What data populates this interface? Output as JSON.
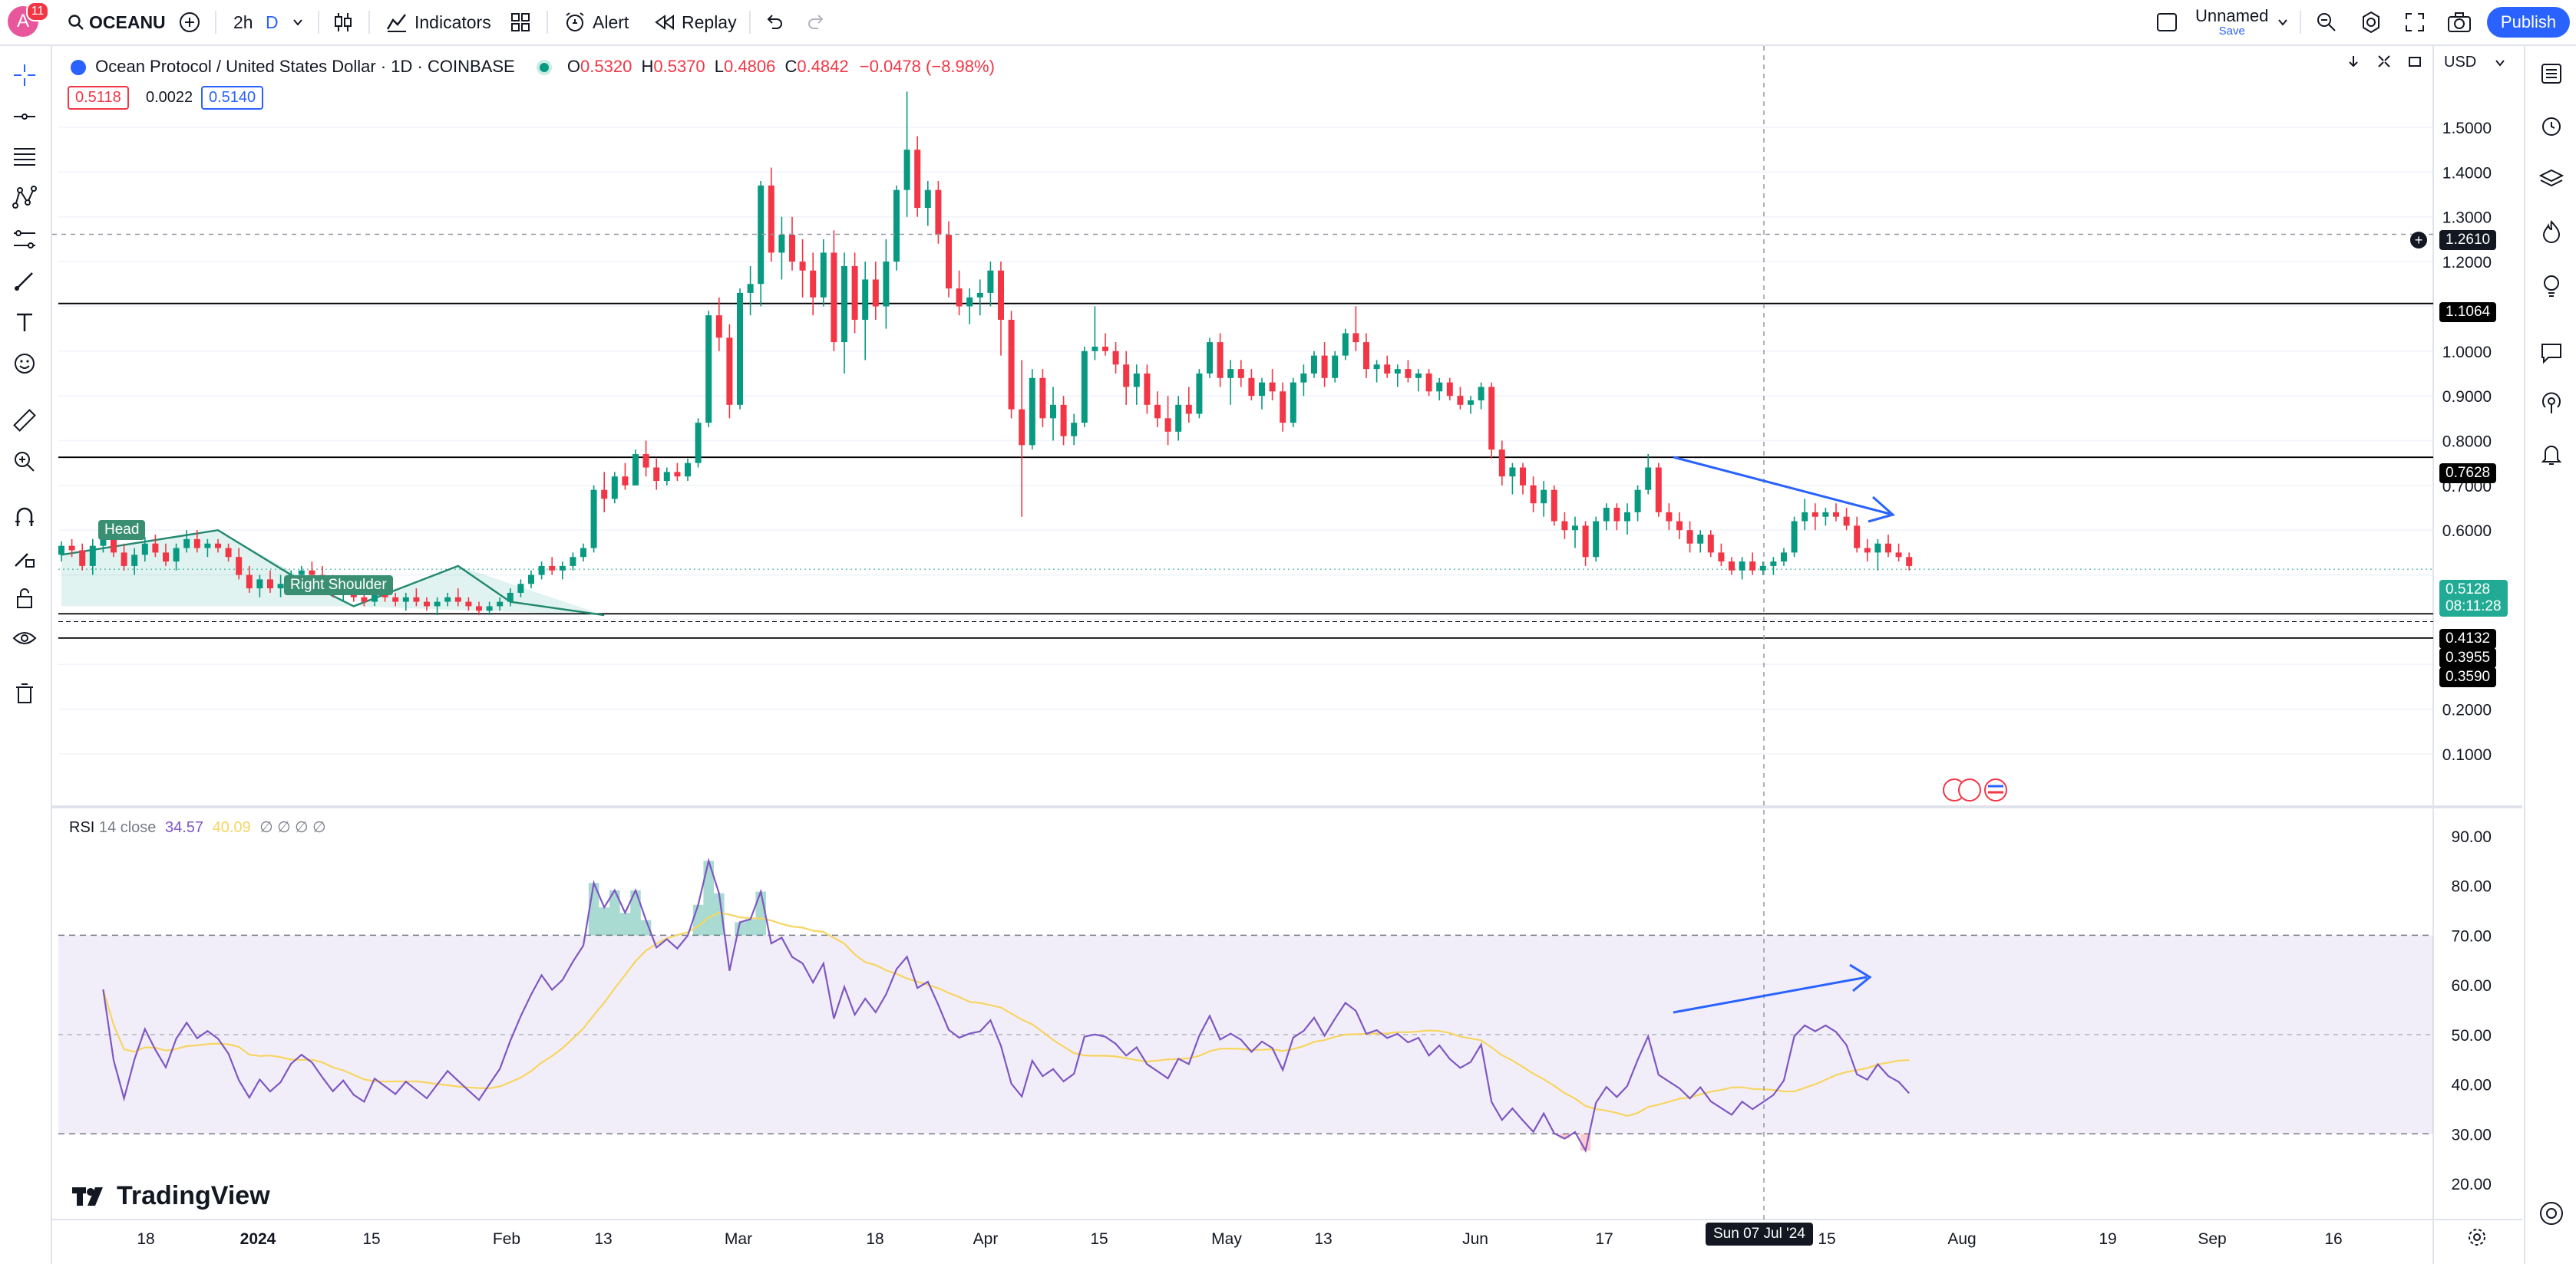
{
  "topbar": {
    "avatar_letter": "A",
    "notifications": "11",
    "symbol": "OCEANU",
    "interval": "2h",
    "interval_unit": "D",
    "indicators": "Indicators",
    "alert": "Alert",
    "replay": "Replay",
    "layout_name": "Unnamed",
    "layout_save": "Save",
    "publish": "Publish"
  },
  "legend": {
    "title": "Ocean Protocol / United States Dollar · 1D · COINBASE",
    "o_label": "O",
    "o": "0.5320",
    "h_label": "H",
    "h": "0.5370",
    "l_label": "L",
    "l": "0.4806",
    "c_label": "C",
    "c": "0.4842",
    "change": "−0.0478 (−8.98%)",
    "bid": "0.5118",
    "spread": "0.0022",
    "ask": "0.5140",
    "currency": "USD"
  },
  "price_axis": [
    "1.5000",
    "1.4000",
    "1.3000",
    "1.2000",
    "1.0000",
    "0.9000",
    "0.8000",
    "0.7000",
    "0.6000",
    "0.3000",
    "0.2000",
    "0.1000"
  ],
  "price_tags": {
    "crosshair": "1.2610",
    "level1": "1.1064",
    "level2": "0.7628",
    "last": "0.5128",
    "countdown": "08:11:28",
    "level3": "0.4132",
    "level4": "0.3955",
    "level5": "0.3590"
  },
  "pattern_labels": {
    "head": "Head",
    "right_shoulder": "Right Shoulder"
  },
  "rsi": {
    "legend_name": "RSI",
    "legend_params": "14 close",
    "rsi_value": "34.57",
    "ma_value": "40.09",
    "extra": "∅ ∅ ∅ ∅",
    "axis": [
      "90.00",
      "80.00",
      "70.00",
      "60.00",
      "50.00",
      "40.00",
      "30.00",
      "20.00"
    ]
  },
  "time_axis": [
    "18",
    "2024",
    "15",
    "Feb",
    "13",
    "Mar",
    "18",
    "Apr",
    "15",
    "May",
    "13",
    "Jun",
    "17",
    "15",
    "Aug",
    "19",
    "Sep",
    "16"
  ],
  "crosshair_date": "Sun 07 Jul '24",
  "brand": "TradingView",
  "colors": {
    "up": "#089981",
    "down": "#f23645",
    "rsi": "#7e57c2",
    "rsi_ma": "#f7d560",
    "arrow": "#2962ff",
    "accent": "#2962ff"
  },
  "chart_data": {
    "type": "candlestick",
    "title": "Ocean Protocol / United States Dollar · 1D · COINBASE",
    "ylim": [
      0.08,
      1.58
    ],
    "indicator": {
      "type": "line",
      "name": "RSI",
      "ylim": [
        18,
        92
      ],
      "bands": [
        30,
        70
      ]
    },
    "series": [
      {
        "name": "OCEANU",
        "ohlc": [
          [
            0.545,
            0.575,
            0.53,
            0.565
          ],
          [
            0.565,
            0.58,
            0.54,
            0.555
          ],
          [
            0.555,
            0.57,
            0.51,
            0.52
          ],
          [
            0.52,
            0.58,
            0.5,
            0.565
          ],
          [
            0.565,
            0.6,
            0.55,
            0.585
          ],
          [
            0.585,
            0.6,
            0.54,
            0.55
          ],
          [
            0.55,
            0.57,
            0.51,
            0.52
          ],
          [
            0.52,
            0.56,
            0.5,
            0.545
          ],
          [
            0.545,
            0.585,
            0.53,
            0.57
          ],
          [
            0.57,
            0.59,
            0.54,
            0.55
          ],
          [
            0.55,
            0.57,
            0.52,
            0.53
          ],
          [
            0.53,
            0.57,
            0.51,
            0.56
          ],
          [
            0.56,
            0.6,
            0.55,
            0.58
          ],
          [
            0.58,
            0.6,
            0.55,
            0.56
          ],
          [
            0.56,
            0.58,
            0.54,
            0.57
          ],
          [
            0.57,
            0.58,
            0.55,
            0.56
          ],
          [
            0.56,
            0.57,
            0.53,
            0.54
          ],
          [
            0.54,
            0.56,
            0.49,
            0.5
          ],
          [
            0.5,
            0.52,
            0.46,
            0.47
          ],
          [
            0.47,
            0.5,
            0.45,
            0.49
          ],
          [
            0.49,
            0.51,
            0.46,
            0.47
          ],
          [
            0.47,
            0.5,
            0.45,
            0.48
          ],
          [
            0.48,
            0.51,
            0.46,
            0.5
          ],
          [
            0.5,
            0.52,
            0.48,
            0.51
          ],
          [
            0.51,
            0.53,
            0.49,
            0.5
          ],
          [
            0.5,
            0.52,
            0.47,
            0.48
          ],
          [
            0.48,
            0.5,
            0.45,
            0.46
          ],
          [
            0.46,
            0.49,
            0.44,
            0.47
          ],
          [
            0.47,
            0.48,
            0.44,
            0.45
          ],
          [
            0.45,
            0.47,
            0.43,
            0.44
          ],
          [
            0.44,
            0.48,
            0.43,
            0.46
          ],
          [
            0.46,
            0.48,
            0.44,
            0.45
          ],
          [
            0.45,
            0.46,
            0.43,
            0.44
          ],
          [
            0.44,
            0.46,
            0.42,
            0.45
          ],
          [
            0.45,
            0.47,
            0.43,
            0.44
          ],
          [
            0.44,
            0.45,
            0.42,
            0.43
          ],
          [
            0.43,
            0.45,
            0.41,
            0.44
          ],
          [
            0.44,
            0.46,
            0.43,
            0.45
          ],
          [
            0.45,
            0.47,
            0.43,
            0.44
          ],
          [
            0.44,
            0.45,
            0.42,
            0.43
          ],
          [
            0.43,
            0.44,
            0.41,
            0.42
          ],
          [
            0.42,
            0.44,
            0.41,
            0.43
          ],
          [
            0.43,
            0.45,
            0.42,
            0.44
          ],
          [
            0.44,
            0.47,
            0.43,
            0.46
          ],
          [
            0.46,
            0.49,
            0.45,
            0.48
          ],
          [
            0.48,
            0.51,
            0.47,
            0.5
          ],
          [
            0.5,
            0.53,
            0.49,
            0.52
          ],
          [
            0.52,
            0.54,
            0.5,
            0.51
          ],
          [
            0.51,
            0.53,
            0.49,
            0.52
          ],
          [
            0.52,
            0.55,
            0.51,
            0.54
          ],
          [
            0.54,
            0.57,
            0.53,
            0.56
          ],
          [
            0.56,
            0.7,
            0.55,
            0.69
          ],
          [
            0.69,
            0.73,
            0.64,
            0.67
          ],
          [
            0.67,
            0.73,
            0.66,
            0.72
          ],
          [
            0.72,
            0.75,
            0.69,
            0.7
          ],
          [
            0.7,
            0.78,
            0.7,
            0.77
          ],
          [
            0.77,
            0.8,
            0.72,
            0.74
          ],
          [
            0.74,
            0.76,
            0.69,
            0.71
          ],
          [
            0.71,
            0.74,
            0.7,
            0.73
          ],
          [
            0.73,
            0.75,
            0.71,
            0.72
          ],
          [
            0.72,
            0.76,
            0.71,
            0.75
          ],
          [
            0.75,
            0.85,
            0.74,
            0.84
          ],
          [
            0.84,
            1.09,
            0.83,
            1.08
          ],
          [
            1.08,
            1.12,
            1.0,
            1.03
          ],
          [
            1.03,
            1.06,
            0.85,
            0.88
          ],
          [
            0.88,
            1.14,
            0.87,
            1.13
          ],
          [
            1.13,
            1.19,
            1.08,
            1.15
          ],
          [
            1.15,
            1.38,
            1.1,
            1.37
          ],
          [
            1.37,
            1.41,
            1.2,
            1.22
          ],
          [
            1.22,
            1.3,
            1.16,
            1.26
          ],
          [
            1.26,
            1.3,
            1.18,
            1.2
          ],
          [
            1.2,
            1.25,
            1.12,
            1.18
          ],
          [
            1.18,
            1.22,
            1.08,
            1.12
          ],
          [
            1.12,
            1.25,
            1.1,
            1.22
          ],
          [
            1.22,
            1.27,
            1.0,
            1.02
          ],
          [
            1.02,
            1.22,
            0.95,
            1.19
          ],
          [
            1.19,
            1.22,
            1.04,
            1.07
          ],
          [
            1.07,
            1.2,
            0.98,
            1.16
          ],
          [
            1.16,
            1.2,
            1.07,
            1.1
          ],
          [
            1.1,
            1.25,
            1.05,
            1.2
          ],
          [
            1.2,
            1.37,
            1.18,
            1.36
          ],
          [
            1.36,
            1.58,
            1.3,
            1.45
          ],
          [
            1.45,
            1.48,
            1.3,
            1.32
          ],
          [
            1.32,
            1.38,
            1.28,
            1.36
          ],
          [
            1.36,
            1.38,
            1.24,
            1.26
          ],
          [
            1.26,
            1.29,
            1.12,
            1.14
          ],
          [
            1.14,
            1.18,
            1.08,
            1.1
          ],
          [
            1.1,
            1.14,
            1.06,
            1.12
          ],
          [
            1.12,
            1.16,
            1.08,
            1.13
          ],
          [
            1.13,
            1.2,
            1.1,
            1.18
          ],
          [
            1.18,
            1.2,
            0.99,
            1.07
          ],
          [
            1.07,
            1.09,
            0.85,
            0.87
          ],
          [
            0.87,
            0.98,
            0.63,
            0.79
          ],
          [
            0.79,
            0.96,
            0.78,
            0.94
          ],
          [
            0.94,
            0.96,
            0.83,
            0.85
          ],
          [
            0.85,
            0.92,
            0.8,
            0.88
          ],
          [
            0.88,
            0.9,
            0.79,
            0.81
          ],
          [
            0.81,
            0.86,
            0.79,
            0.84
          ],
          [
            0.84,
            1.01,
            0.83,
            1.0
          ],
          [
            1.0,
            1.1,
            0.98,
            1.01
          ],
          [
            1.01,
            1.04,
            0.99,
            1.0
          ],
          [
            1.0,
            1.02,
            0.95,
            0.97
          ],
          [
            0.97,
            1.0,
            0.88,
            0.92
          ],
          [
            0.92,
            0.97,
            0.88,
            0.95
          ],
          [
            0.95,
            0.97,
            0.86,
            0.88
          ],
          [
            0.88,
            0.91,
            0.83,
            0.85
          ],
          [
            0.85,
            0.9,
            0.79,
            0.82
          ],
          [
            0.82,
            0.9,
            0.8,
            0.88
          ],
          [
            0.88,
            0.92,
            0.84,
            0.86
          ],
          [
            0.86,
            0.96,
            0.85,
            0.95
          ],
          [
            0.95,
            1.03,
            0.94,
            1.02
          ],
          [
            1.02,
            1.04,
            0.92,
            0.94
          ],
          [
            0.94,
            0.98,
            0.88,
            0.96
          ],
          [
            0.96,
            0.98,
            0.92,
            0.94
          ],
          [
            0.94,
            0.96,
            0.89,
            0.9
          ],
          [
            0.9,
            0.94,
            0.87,
            0.93
          ],
          [
            0.93,
            0.96,
            0.89,
            0.91
          ],
          [
            0.91,
            0.93,
            0.82,
            0.84
          ],
          [
            0.84,
            0.94,
            0.83,
            0.93
          ],
          [
            0.93,
            0.97,
            0.9,
            0.95
          ],
          [
            0.95,
            1.0,
            0.94,
            0.99
          ],
          [
            0.99,
            1.02,
            0.92,
            0.94
          ],
          [
            0.94,
            1.0,
            0.93,
            0.99
          ],
          [
            0.99,
            1.05,
            0.98,
            1.04
          ],
          [
            1.04,
            1.1,
            1.0,
            1.02
          ],
          [
            1.02,
            1.04,
            0.94,
            0.96
          ],
          [
            0.96,
            0.98,
            0.93,
            0.97
          ],
          [
            0.97,
            0.99,
            0.94,
            0.95
          ],
          [
            0.95,
            0.97,
            0.92,
            0.96
          ],
          [
            0.96,
            0.98,
            0.93,
            0.94
          ],
          [
            0.94,
            0.96,
            0.91,
            0.95
          ],
          [
            0.95,
            0.96,
            0.9,
            0.91
          ],
          [
            0.91,
            0.94,
            0.89,
            0.93
          ],
          [
            0.93,
            0.94,
            0.89,
            0.9
          ],
          [
            0.9,
            0.92,
            0.87,
            0.88
          ],
          [
            0.88,
            0.9,
            0.86,
            0.89
          ],
          [
            0.89,
            0.93,
            0.87,
            0.92
          ],
          [
            0.92,
            0.93,
            0.76,
            0.78
          ],
          [
            0.78,
            0.8,
            0.7,
            0.72
          ],
          [
            0.72,
            0.75,
            0.68,
            0.74
          ],
          [
            0.74,
            0.75,
            0.68,
            0.7
          ],
          [
            0.7,
            0.72,
            0.64,
            0.66
          ],
          [
            0.66,
            0.71,
            0.63,
            0.69
          ],
          [
            0.69,
            0.7,
            0.61,
            0.62
          ],
          [
            0.62,
            0.64,
            0.58,
            0.6
          ],
          [
            0.6,
            0.63,
            0.56,
            0.61
          ],
          [
            0.61,
            0.62,
            0.52,
            0.54
          ],
          [
            0.54,
            0.63,
            0.53,
            0.62
          ],
          [
            0.62,
            0.66,
            0.6,
            0.65
          ],
          [
            0.65,
            0.66,
            0.6,
            0.62
          ],
          [
            0.62,
            0.66,
            0.59,
            0.64
          ],
          [
            0.64,
            0.7,
            0.62,
            0.69
          ],
          [
            0.69,
            0.77,
            0.68,
            0.74
          ],
          [
            0.74,
            0.75,
            0.63,
            0.64
          ],
          [
            0.64,
            0.66,
            0.6,
            0.62
          ],
          [
            0.62,
            0.64,
            0.58,
            0.6
          ],
          [
            0.6,
            0.62,
            0.55,
            0.57
          ],
          [
            0.57,
            0.6,
            0.55,
            0.59
          ],
          [
            0.59,
            0.6,
            0.54,
            0.55
          ],
          [
            0.55,
            0.57,
            0.52,
            0.53
          ],
          [
            0.53,
            0.54,
            0.5,
            0.51
          ],
          [
            0.51,
            0.54,
            0.49,
            0.53
          ],
          [
            0.53,
            0.55,
            0.5,
            0.51
          ],
          [
            0.51,
            0.53,
            0.5,
            0.52
          ],
          [
            0.52,
            0.54,
            0.5,
            0.53
          ],
          [
            0.53,
            0.56,
            0.52,
            0.55
          ],
          [
            0.55,
            0.63,
            0.54,
            0.62
          ],
          [
            0.62,
            0.67,
            0.6,
            0.64
          ],
          [
            0.64,
            0.66,
            0.6,
            0.63
          ],
          [
            0.63,
            0.65,
            0.61,
            0.64
          ],
          [
            0.64,
            0.66,
            0.62,
            0.63
          ],
          [
            0.63,
            0.65,
            0.6,
            0.61
          ],
          [
            0.61,
            0.63,
            0.55,
            0.56
          ],
          [
            0.56,
            0.58,
            0.53,
            0.55
          ],
          [
            0.55,
            0.58,
            0.51,
            0.57
          ],
          [
            0.57,
            0.59,
            0.54,
            0.55
          ],
          [
            0.55,
            0.57,
            0.53,
            0.54
          ],
          [
            0.54,
            0.55,
            0.51,
            0.52
          ]
        ]
      }
    ]
  }
}
